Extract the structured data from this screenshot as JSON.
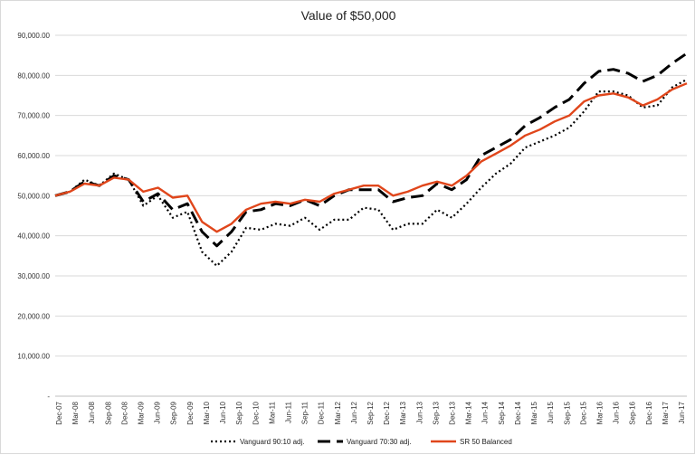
{
  "chart_data": {
    "type": "line",
    "title": "Value of $50,000",
    "xlabel": "",
    "ylabel": "",
    "ylim": [
      0,
      90000
    ],
    "y_ticks": [
      0,
      10000,
      20000,
      30000,
      40000,
      50000,
      60000,
      70000,
      80000,
      90000
    ],
    "y_tick_labels": [
      "-",
      "10,000.00",
      "20,000.00",
      "30,000.00",
      "40,000.00",
      "50,000.00",
      "60,000.00",
      "70,000.00",
      "80,000.00",
      "90,000.00"
    ],
    "x_tick_labels": [
      "Dec-07",
      "Mar-08",
      "Jun-08",
      "Sep-08",
      "Dec-08",
      "Mar-09",
      "Jun-09",
      "Sep-09",
      "Dec-09",
      "Mar-10",
      "Jun-10",
      "Sep-10",
      "Dec-10",
      "Mar-11",
      "Jun-11",
      "Sep-11",
      "Dec-11",
      "Mar-12",
      "Jun-12",
      "Sep-12",
      "Dec-12",
      "Mar-13",
      "Jun-13",
      "Sep-13",
      "Dec-13",
      "Mar-14",
      "Jun-14",
      "Sep-14",
      "Dec-14",
      "Mar-15",
      "Jun-15",
      "Sep-15",
      "Dec-15",
      "Mar-16",
      "Jun-16",
      "Sep-16",
      "Dec-16",
      "Mar-17",
      "Jun-17"
    ],
    "grid": true,
    "legend_position": "bottom",
    "series": [
      {
        "name": "Vanguard 90:10 adj.",
        "color": "#000000",
        "style": "dotted",
        "values": [
          50000,
          51000,
          54000,
          52500,
          55500,
          54000,
          47500,
          50000,
          44500,
          46000,
          36000,
          32500,
          36000,
          42000,
          41500,
          43000,
          42500,
          44500,
          41500,
          44000,
          44000,
          47000,
          46500,
          41500,
          43000,
          43000,
          46500,
          44500,
          48000,
          52000,
          55500,
          58000,
          62000,
          63500,
          65000,
          67000,
          71000,
          76000,
          76000,
          75000,
          72000,
          72500,
          77000,
          79000
        ]
      },
      {
        "name": "Vanguard 70:30 adj.",
        "color": "#000000",
        "style": "dashed",
        "values": [
          50000,
          51000,
          53500,
          52500,
          55000,
          54000,
          48500,
          50500,
          46500,
          48000,
          41000,
          37500,
          41000,
          46000,
          46500,
          48000,
          47500,
          49000,
          47500,
          50000,
          51500,
          51500,
          51500,
          48500,
          49500,
          50000,
          53000,
          51500,
          54000,
          60000,
          62000,
          64000,
          67500,
          69500,
          72000,
          74000,
          78000,
          81000,
          81500,
          80500,
          78500,
          80000,
          83000,
          85500
        ]
      },
      {
        "name": "SR 50 Balanced",
        "color": "#e0461b",
        "style": "solid",
        "values": [
          50000,
          51000,
          53000,
          52500,
          54500,
          54000,
          51000,
          52000,
          49500,
          50000,
          43500,
          41000,
          43000,
          46500,
          48000,
          48500,
          48000,
          49000,
          48500,
          50500,
          51500,
          52500,
          52500,
          50000,
          51000,
          52500,
          53500,
          52500,
          55000,
          58500,
          60500,
          62500,
          65000,
          66500,
          68500,
          70000,
          73500,
          75000,
          75500,
          74500,
          72500,
          74000,
          76500,
          78000
        ]
      }
    ]
  }
}
